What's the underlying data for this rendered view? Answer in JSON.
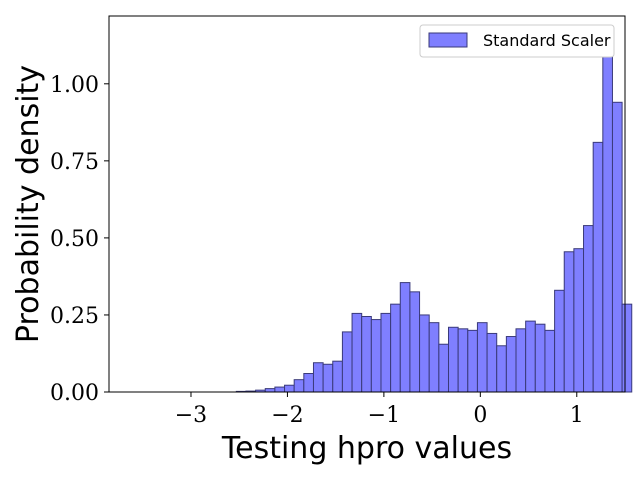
{
  "chart_data": {
    "type": "bar",
    "xlabel": "Testing hpro values",
    "ylabel": "Probability density",
    "xlim": [
      -3.85,
      1.5
    ],
    "ylim": [
      0,
      1.22
    ],
    "xticks": [
      {
        "value": -3,
        "label": "−3"
      },
      {
        "value": -2,
        "label": "−2"
      },
      {
        "value": -1,
        "label": "−1"
      },
      {
        "value": 0,
        "label": "0"
      },
      {
        "value": 1,
        "label": "1"
      }
    ],
    "yticks": [
      {
        "value": 0.0,
        "label": "0.00"
      },
      {
        "value": 0.25,
        "label": "0.25"
      },
      {
        "value": 0.5,
        "label": "0.50"
      },
      {
        "value": 0.75,
        "label": "0.75"
      },
      {
        "value": 1.0,
        "label": "1.00"
      }
    ],
    "bin_start": -3.63,
    "bin_width": 0.1,
    "values": [
      0.0,
      0.0,
      0.0,
      0.0,
      0.0,
      0.0,
      0.0,
      0.0,
      0.0,
      0.0,
      0.0,
      0.002,
      0.003,
      0.006,
      0.011,
      0.016,
      0.022,
      0.04,
      0.06,
      0.095,
      0.09,
      0.1,
      0.195,
      0.255,
      0.245,
      0.235,
      0.255,
      0.285,
      0.355,
      0.325,
      0.25,
      0.225,
      0.155,
      0.21,
      0.205,
      0.2,
      0.225,
      0.19,
      0.15,
      0.18,
      0.205,
      0.23,
      0.22,
      0.2,
      0.33,
      0.455,
      0.465,
      0.54,
      0.81,
      1.16,
      0.94,
      0.285
    ],
    "series": [
      {
        "name": "Standard Scaler",
        "color": "#7f7fff",
        "edge_color": "#3a3a7a"
      }
    ],
    "legend_position": "top-right",
    "grid": false
  }
}
